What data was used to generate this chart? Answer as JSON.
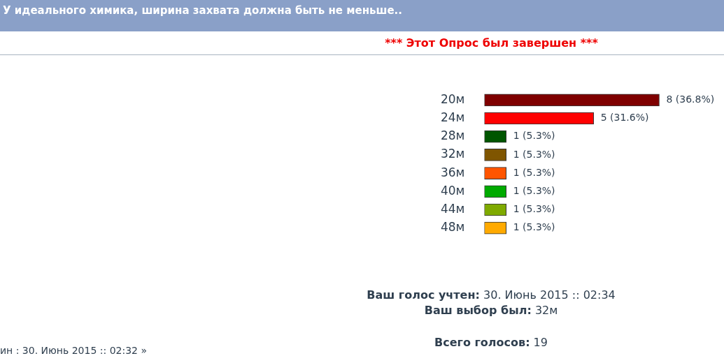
{
  "chart_data": {
    "type": "bar",
    "orientation": "horizontal",
    "title": "У идеального химика, ширина захвата должна быть не меньше..",
    "subtitle": "*** Этот Опрос был завершен ***",
    "categories": [
      "20м",
      "24м",
      "28м",
      "32м",
      "36м",
      "40м",
      "44м",
      "48м"
    ],
    "values": [
      8,
      5,
      1,
      1,
      1,
      1,
      1,
      1
    ],
    "colors": [
      "#7f0000",
      "#ff0000",
      "#005500",
      "#7f5500",
      "#ff5500",
      "#00aa00",
      "#7faa00",
      "#ffaa00"
    ],
    "value_labels": [
      "8 (36.8%)",
      "5 (31.6%)",
      "1 (5.3%)",
      "1 (5.3%)",
      "1 (5.3%)",
      "1 (5.3%)",
      "1 (5.3%)",
      "1 (5.3%)"
    ],
    "grid": false,
    "legend": false,
    "tick_labels": "y",
    "annotations": [
      "Ваш голос учтен: 30. Июнь 2015 :: 02:34",
      "Ваш выбор был: 32м",
      "Всего голосов: 19",
      "ин : 30. Июнь 2015 :: 02:32 »"
    ]
  }
}
